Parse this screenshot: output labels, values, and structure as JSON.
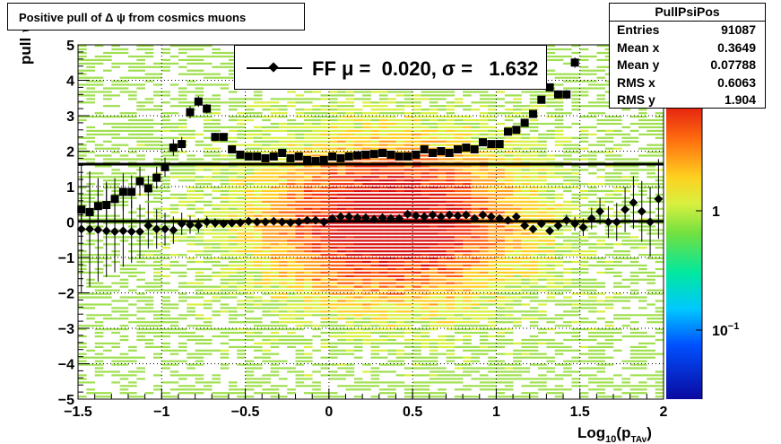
{
  "title": "Positive pull of Δ ψ from cosmics muons",
  "stats": {
    "name": "PullPsiPos",
    "rows": [
      {
        "label": "Entries",
        "value": "91087"
      },
      {
        "label": "Mean x",
        "value": "0.3649"
      },
      {
        "label": "Mean y",
        "value": "0.07788"
      },
      {
        "label": "RMS x",
        "value": "0.6063"
      },
      {
        "label": "RMS y",
        "value": "1.904"
      }
    ]
  },
  "legend": {
    "label": "FF μ =  0.020, σ =   1.632"
  },
  "colors": {
    "mean_marker": "#000000",
    "sigma_marker": "#000000",
    "fit_line": "#000000",
    "grid": "#000000"
  },
  "chart_data": {
    "type": "heatmap",
    "xlabel": "Log10(pTAv)",
    "ylabel": "pull ψ",
    "xlim": [
      -1.5,
      2
    ],
    "ylim": [
      -5,
      5
    ],
    "x_ticks": [
      "−1.5",
      "−1",
      "−0.5",
      "0",
      "0.5",
      "1",
      "1.5",
      "2"
    ],
    "y_ticks": [
      "−5",
      "−4",
      "−3",
      "−2",
      "−1",
      "0",
      "1",
      "2",
      "3",
      "4",
      "5"
    ],
    "colorbar": {
      "scale": "log",
      "tick_labels": [
        "1",
        "10−1"
      ],
      "tick_values": [
        1,
        0.1
      ]
    },
    "fit_lines": [
      {
        "y": 0.02
      },
      {
        "y": 1.632
      }
    ],
    "series": [
      {
        "marker": "diamond",
        "points": [
          {
            "x": -1.48,
            "y": -0.2
          },
          {
            "x": -1.43,
            "y": -0.2
          },
          {
            "x": -1.38,
            "y": -0.22
          },
          {
            "x": -1.33,
            "y": -0.25
          },
          {
            "x": -1.28,
            "y": -0.27
          },
          {
            "x": -1.23,
            "y": -0.25
          },
          {
            "x": -1.18,
            "y": -0.27
          },
          {
            "x": -1.13,
            "y": -0.27
          },
          {
            "x": -1.08,
            "y": -0.1
          },
          {
            "x": -1.03,
            "y": -0.2
          },
          {
            "x": -0.98,
            "y": -0.2
          },
          {
            "x": -0.93,
            "y": -0.23
          },
          {
            "x": -0.88,
            "y": -0.05
          },
          {
            "x": -0.83,
            "y": -0.08
          },
          {
            "x": -0.78,
            "y": -0.1
          },
          {
            "x": -0.73,
            "y": 0.0
          },
          {
            "x": -0.68,
            "y": -0.03
          },
          {
            "x": -0.63,
            "y": -0.05
          },
          {
            "x": -0.58,
            "y": -0.03
          },
          {
            "x": -0.53,
            "y": -0.02
          },
          {
            "x": -0.48,
            "y": 0.02
          },
          {
            "x": -0.43,
            "y": 0.0
          },
          {
            "x": -0.38,
            "y": 0.0
          },
          {
            "x": -0.33,
            "y": 0.02
          },
          {
            "x": -0.28,
            "y": 0.0
          },
          {
            "x": -0.23,
            "y": -0.02
          },
          {
            "x": -0.18,
            "y": 0.0
          },
          {
            "x": -0.13,
            "y": 0.05
          },
          {
            "x": -0.08,
            "y": 0.05
          },
          {
            "x": -0.03,
            "y": 0.0
          },
          {
            "x": 0.02,
            "y": 0.1
          },
          {
            "x": 0.07,
            "y": 0.15
          },
          {
            "x": 0.12,
            "y": 0.15
          },
          {
            "x": 0.17,
            "y": 0.12
          },
          {
            "x": 0.22,
            "y": 0.12
          },
          {
            "x": 0.27,
            "y": 0.08
          },
          {
            "x": 0.32,
            "y": 0.12
          },
          {
            "x": 0.37,
            "y": 0.1
          },
          {
            "x": 0.42,
            "y": 0.1
          },
          {
            "x": 0.47,
            "y": 0.22
          },
          {
            "x": 0.52,
            "y": 0.18
          },
          {
            "x": 0.57,
            "y": 0.15
          },
          {
            "x": 0.62,
            "y": 0.2
          },
          {
            "x": 0.67,
            "y": 0.15
          },
          {
            "x": 0.72,
            "y": 0.2
          },
          {
            "x": 0.77,
            "y": 0.18
          },
          {
            "x": 0.82,
            "y": 0.2
          },
          {
            "x": 0.87,
            "y": 0.1
          },
          {
            "x": 0.92,
            "y": 0.2
          },
          {
            "x": 0.97,
            "y": 0.15
          },
          {
            "x": 1.02,
            "y": 0.1
          },
          {
            "x": 1.07,
            "y": 0.05
          },
          {
            "x": 1.12,
            "y": 0.15
          },
          {
            "x": 1.17,
            "y": -0.1
          },
          {
            "x": 1.22,
            "y": -0.2
          },
          {
            "x": 1.27,
            "y": -0.05
          },
          {
            "x": 1.32,
            "y": -0.25
          },
          {
            "x": 1.37,
            "y": -0.1
          },
          {
            "x": 1.42,
            "y": 0.05
          },
          {
            "x": 1.47,
            "y": -0.05
          },
          {
            "x": 1.52,
            "y": -0.15
          },
          {
            "x": 1.57,
            "y": 0.1
          },
          {
            "x": 1.62,
            "y": 0.3
          },
          {
            "x": 1.67,
            "y": 0.0
          },
          {
            "x": 1.72,
            "y": 0.0
          },
          {
            "x": 1.77,
            "y": 0.35
          },
          {
            "x": 1.82,
            "y": 0.55
          },
          {
            "x": 1.87,
            "y": 0.3
          },
          {
            "x": 1.92,
            "y": 0.0
          },
          {
            "x": 1.97,
            "y": 0.65
          }
        ]
      },
      {
        "marker": "square",
        "points": [
          {
            "x": -1.48,
            "y": 0.35
          },
          {
            "x": -1.43,
            "y": 0.28
          },
          {
            "x": -1.38,
            "y": 0.45
          },
          {
            "x": -1.33,
            "y": 0.48
          },
          {
            "x": -1.28,
            "y": 0.65
          },
          {
            "x": -1.23,
            "y": 0.85
          },
          {
            "x": -1.18,
            "y": 0.85
          },
          {
            "x": -1.13,
            "y": 1.15
          },
          {
            "x": -1.08,
            "y": 0.95
          },
          {
            "x": -1.03,
            "y": 1.25
          },
          {
            "x": -0.98,
            "y": 1.55
          },
          {
            "x": -0.93,
            "y": 2.1
          },
          {
            "x": -0.88,
            "y": 2.2
          },
          {
            "x": -0.83,
            "y": 3.1
          },
          {
            "x": -0.78,
            "y": 3.4
          },
          {
            "x": -0.73,
            "y": 3.2
          },
          {
            "x": -0.68,
            "y": 2.4
          },
          {
            "x": -0.63,
            "y": 2.4
          },
          {
            "x": -0.58,
            "y": 2.05
          },
          {
            "x": -0.53,
            "y": 1.9
          },
          {
            "x": -0.48,
            "y": 1.85
          },
          {
            "x": -0.43,
            "y": 1.85
          },
          {
            "x": -0.38,
            "y": 1.8
          },
          {
            "x": -0.33,
            "y": 1.85
          },
          {
            "x": -0.28,
            "y": 1.95
          },
          {
            "x": -0.23,
            "y": 1.8
          },
          {
            "x": -0.18,
            "y": 1.85
          },
          {
            "x": -0.13,
            "y": 1.75
          },
          {
            "x": -0.08,
            "y": 1.72
          },
          {
            "x": -0.03,
            "y": 1.75
          },
          {
            "x": 0.02,
            "y": 1.85
          },
          {
            "x": 0.07,
            "y": 1.8
          },
          {
            "x": 0.12,
            "y": 1.85
          },
          {
            "x": 0.17,
            "y": 1.88
          },
          {
            "x": 0.22,
            "y": 1.9
          },
          {
            "x": 0.27,
            "y": 1.92
          },
          {
            "x": 0.32,
            "y": 1.95
          },
          {
            "x": 0.37,
            "y": 1.9
          },
          {
            "x": 0.42,
            "y": 1.85
          },
          {
            "x": 0.47,
            "y": 1.85
          },
          {
            "x": 0.52,
            "y": 1.9
          },
          {
            "x": 0.57,
            "y": 2.05
          },
          {
            "x": 0.62,
            "y": 1.95
          },
          {
            "x": 0.67,
            "y": 2.0
          },
          {
            "x": 0.72,
            "y": 1.95
          },
          {
            "x": 0.77,
            "y": 2.05
          },
          {
            "x": 0.82,
            "y": 2.1
          },
          {
            "x": 0.87,
            "y": 2.05
          },
          {
            "x": 0.92,
            "y": 2.25
          },
          {
            "x": 0.97,
            "y": 2.2
          },
          {
            "x": 1.02,
            "y": 2.2
          },
          {
            "x": 1.07,
            "y": 2.55
          },
          {
            "x": 1.12,
            "y": 2.6
          },
          {
            "x": 1.17,
            "y": 2.8
          },
          {
            "x": 1.22,
            "y": 3.05
          },
          {
            "x": 1.27,
            "y": 3.45
          },
          {
            "x": 1.32,
            "y": 3.8
          },
          {
            "x": 1.37,
            "y": 3.6
          },
          {
            "x": 1.42,
            "y": 3.6
          },
          {
            "x": 1.47,
            "y": 4.5
          }
        ]
      }
    ]
  }
}
